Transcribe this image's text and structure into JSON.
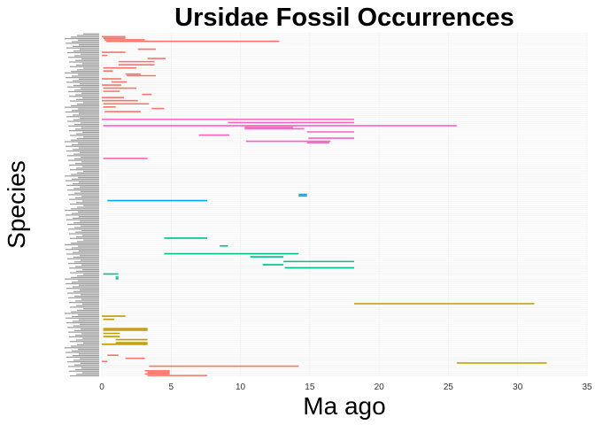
{
  "chart_data": {
    "type": "range",
    "title": "Ursidae Fossil Occurrences",
    "xlabel": "Ma ago",
    "ylabel": "Species",
    "xlim": [
      0,
      35
    ],
    "xticks": [
      0,
      5,
      10,
      15,
      20,
      25,
      30,
      35
    ],
    "grid": true,
    "legend": "none",
    "groups": [
      {
        "color": "#F8766D",
        "ranges": [
          [
            0.0,
            1.7
          ],
          [
            0.1,
            1.7
          ],
          [
            0.2,
            3.1
          ],
          [
            0.3,
            12.8
          ],
          [
            2.6,
            3.9
          ],
          [
            0.0,
            1.7
          ],
          [
            0.0,
            0.4
          ],
          [
            3.3,
            4.6
          ],
          [
            1.2,
            3.8
          ],
          [
            1.2,
            3.8
          ],
          [
            0.1,
            2.5
          ],
          [
            0.1,
            0.8
          ],
          [
            1.7,
            2.8
          ],
          [
            1.8,
            3.9
          ],
          [
            0.0,
            1.4
          ],
          [
            0.7,
            1.8
          ],
          [
            0.0,
            1.4
          ],
          [
            0.1,
            2.5
          ],
          [
            0.1,
            1.3
          ],
          [
            2.9,
            3.6
          ],
          [
            0.0,
            1.6
          ],
          [
            0.0,
            2.6
          ],
          [
            0.1,
            3.4
          ],
          [
            0.1,
            1.0
          ],
          [
            3.6,
            4.5
          ],
          [
            0.2,
            2.8
          ]
        ]
      },
      {
        "color": "#FF61C3",
        "ranges": [
          [
            0.0,
            18.2
          ],
          [
            9.1,
            18.2
          ],
          [
            0.1,
            25.6
          ],
          [
            10.3,
            13.8
          ],
          [
            10.3,
            14.6
          ],
          [
            14.8,
            18.2
          ],
          [
            7.0,
            9.2
          ],
          [
            14.9,
            18.2
          ],
          [
            10.4,
            16.5
          ],
          [
            14.8,
            16.4
          ],
          [
            0.1,
            3.3
          ]
        ]
      },
      {
        "color": "#00A9FF",
        "ranges": [
          [
            14.2,
            14.8
          ],
          [
            14.2,
            14.8
          ],
          [
            0.4,
            7.6
          ]
        ]
      },
      {
        "color": "#00C08B",
        "ranges": [
          [
            4.5,
            7.6
          ],
          [
            8.5,
            9.1
          ],
          [
            4.5,
            14.2
          ],
          [
            10.7,
            13.1
          ],
          [
            13.1,
            18.2
          ],
          [
            11.6,
            13.1
          ],
          [
            13.2,
            18.2
          ],
          [
            0.1,
            1.2
          ],
          [
            1.0,
            1.2
          ],
          [
            1.0,
            1.2
          ]
        ]
      },
      {
        "color": "#C49A00",
        "ranges": [
          [
            18.2,
            31.2
          ],
          [
            0.0,
            1.7
          ],
          [
            0.1,
            0.9
          ],
          [
            0.1,
            3.3
          ],
          [
            0.1,
            3.3
          ],
          [
            0.1,
            1.3
          ],
          [
            0.1,
            1.3
          ],
          [
            1.0,
            3.3
          ],
          [
            1.0,
            3.3
          ],
          [
            0.0,
            3.3
          ],
          [
            25.6,
            32.1
          ]
        ]
      },
      {
        "color": "#F8766D",
        "ranges": [
          [
            0.4,
            1.2
          ],
          [
            1.7,
            3.1
          ],
          [
            0.0,
            0.4
          ],
          [
            3.4,
            14.2
          ],
          [
            3.3,
            7.6
          ],
          [
            3.1,
            4.9
          ],
          [
            3.3,
            4.9
          ],
          [
            3.1,
            4.9
          ]
        ]
      }
    ]
  }
}
